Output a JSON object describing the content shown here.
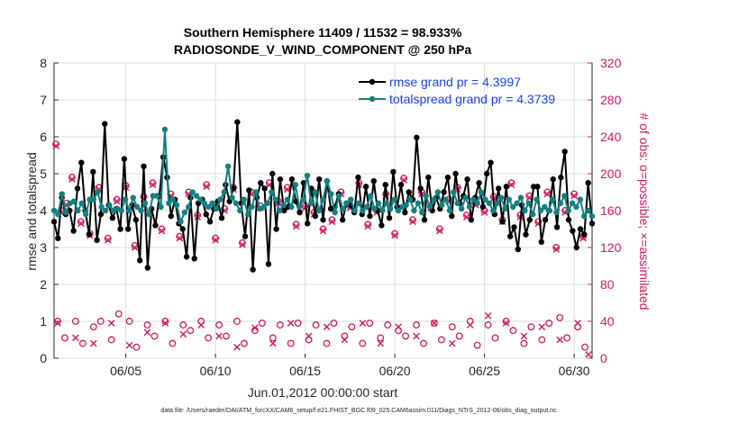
{
  "chart_data": {
    "type": "line",
    "title": "Southern Hemisphere 11409 / 11532 = 98.933%",
    "subtitle": "RADIOSONDE_V_WIND_COMPONENT @ 250 hPa",
    "ylabel": "rmse and totalspread",
    "y2label": "# of obs: o=possible; ×=assimilated",
    "xlabel": "Jun.01,2012 00:00:00 start",
    "footnote": "data file: /Users/raeder/DAI/ATM_forcXX/CAM6_setup/f.e21.FHIST_BGC.f09_025.CAM6assim.011/Diags_NTrS_2012-06/obs_diag_output.nc",
    "xlim": [
      1,
      31
    ],
    "ylim": [
      0,
      8
    ],
    "y2lim": [
      0,
      320
    ],
    "xticks": [
      5,
      10,
      15,
      20,
      25,
      30
    ],
    "xtick_labels": [
      "06/05",
      "06/10",
      "06/15",
      "06/20",
      "06/25",
      "06/30"
    ],
    "yticks": [
      0,
      1,
      2,
      3,
      4,
      5,
      6,
      7,
      8
    ],
    "y2ticks": [
      0,
      40,
      80,
      120,
      160,
      200,
      240,
      280,
      320
    ],
    "legend_position": "top-right",
    "colors": {
      "rmse": "#000000",
      "spread": "#128080",
      "obs": "#d01860",
      "legend_text": "#1a3ff0"
    },
    "series": [
      {
        "name": "rmse grand pr = 4.3997",
        "values": [
          3.7,
          3.25,
          4.35,
          3.9,
          4.0,
          3.45,
          4.6,
          5.3,
          4.0,
          3.35,
          5.05,
          3.2,
          3.9,
          6.35,
          4.15,
          3.8,
          4.05,
          3.5,
          5.4,
          3.5,
          4.15,
          3.75,
          2.65,
          5.2,
          2.45,
          4.05,
          3.6,
          4.4,
          5.45,
          4.9,
          3.85,
          4.3,
          3.65,
          3.5,
          2.75,
          4.35,
          2.7,
          4.2,
          4.3,
          3.9,
          3.7,
          4.05,
          4.25,
          3.8,
          4.7,
          4.25,
          4.6,
          6.4,
          4.2,
          3.3,
          4.55,
          2.4,
          4.35,
          4.75,
          4.6,
          2.55,
          5.0,
          3.5,
          4.85,
          4.0,
          4.1,
          4.85,
          4.25,
          3.95,
          4.75,
          3.65,
          4.6,
          3.85,
          4.85,
          3.75,
          4.8,
          4.05,
          4.1,
          4.45,
          3.75,
          4.2,
          4.15,
          3.95,
          4.9,
          3.9,
          4.65,
          3.85,
          4.8,
          4.0,
          3.6,
          4.7,
          3.8,
          5.05,
          4.1,
          4.7,
          3.95,
          4.5,
          4.3,
          5.98,
          4.6,
          3.75,
          4.9,
          4.0,
          4.35,
          4.05,
          4.5,
          4.9,
          3.85,
          5.0,
          4.2,
          4.4,
          4.85,
          3.75,
          4.35,
          4.75,
          4.1,
          5.0,
          5.3,
          3.9,
          4.6,
          3.7,
          4.65,
          3.3,
          3.55,
          2.95,
          4.15,
          3.35,
          3.75,
          4.65,
          4.65,
          3.15,
          3.75,
          4.0,
          4.85,
          3.55,
          4.9,
          5.6,
          3.75,
          3.45,
          3.0,
          3.5,
          3.35,
          4.75,
          3.65
        ]
      },
      {
        "name": "totalspread grand pr = 4.3739",
        "values": [
          4.0,
          3.9,
          4.45,
          3.95,
          4.2,
          4.25,
          4.0,
          4.2,
          3.9,
          4.3,
          4.3,
          4.5,
          4.1,
          4.0,
          4.15,
          4.0,
          4.05,
          4.0,
          4.3,
          4.0,
          4.35,
          4.1,
          4.0,
          4.2,
          3.9,
          4.4,
          4.4,
          4.1,
          6.2,
          4.2,
          4.3,
          4.15,
          3.7,
          3.95,
          4.1,
          4.5,
          4.4,
          4.3,
          4.2,
          4.1,
          4.2,
          4.05,
          4.3,
          4.5,
          5.2,
          4.35,
          4.2,
          4.0,
          4.3,
          3.9,
          4.1,
          4.5,
          4.05,
          4.1,
          4.2,
          4.5,
          4.3,
          4.0,
          4.15,
          4.3,
          4.1,
          4.7,
          4.1,
          4.3,
          4.95,
          4.2,
          4.5,
          4.0,
          4.3,
          4.8,
          4.45,
          3.95,
          4.4,
          4.05,
          4.2,
          4.3,
          4.0,
          4.2,
          4.0,
          4.1,
          4.4,
          4.05,
          4.2,
          4.0,
          4.2,
          4.05,
          4.3,
          4.0,
          4.1,
          4.15,
          4.3,
          4.0,
          4.2,
          3.95,
          4.4,
          4.1,
          4.3,
          4.5,
          4.15,
          4.3,
          4.0,
          4.5,
          4.2,
          4.05,
          4.35,
          4.1,
          4.3,
          4.2,
          4.5,
          4.3,
          4.2,
          4.0,
          4.2,
          4.35,
          4.05,
          4.3,
          4.1,
          4.2,
          4.35,
          4.0,
          4.2,
          3.9,
          4.3,
          4.0,
          4.1,
          4.0,
          4.3,
          3.95,
          4.2,
          4.4,
          4.0,
          4.2,
          4.1,
          4.3,
          3.85,
          4.0,
          3.85
        ]
      },
      {
        "name": "obs possible",
        "axis": "right",
        "x": [
          1.1,
          1.4,
          1.7,
          2.0,
          2.5,
          3.0,
          3.5,
          4.0,
          4.5,
          5.0,
          5.5,
          6.0,
          6.5,
          7.0,
          7.5,
          8.0,
          8.5,
          9.0,
          9.5,
          10.0,
          10.5,
          11.0,
          11.5,
          12.0,
          12.5,
          13.0,
          13.5,
          14.0,
          14.5,
          15.0,
          15.5,
          16.0,
          16.5,
          17.0,
          17.5,
          18.0,
          18.5,
          19.0,
          19.5,
          20.0,
          20.5,
          21.0,
          21.5,
          22.0,
          22.5,
          23.0,
          23.5,
          24.0,
          24.5,
          25.0,
          25.5,
          26.0,
          26.5,
          27.0,
          27.5,
          28.0,
          28.5,
          29.0,
          29.5,
          30.0,
          30.5
        ],
        "values": [
          232,
          160,
          168,
          196,
          148,
          135,
          185,
          130,
          172,
          187,
          122,
          175,
          190,
          140,
          178,
          132,
          180,
          155,
          188,
          130,
          162,
          185,
          125,
          180,
          165,
          190,
          170,
          185,
          145,
          165,
          158,
          140,
          150,
          180,
          165,
          190,
          145,
          160,
          178,
          135,
          195,
          150,
          180,
          165,
          140,
          172,
          185,
          155,
          168,
          160,
          175,
          150,
          190,
          155,
          176,
          148,
          180,
          120,
          160,
          178,
          132
        ]
      },
      {
        "name": "obs assimilated",
        "axis": "right",
        "x": [
          1.1,
          1.4,
          1.7,
          2.0,
          2.5,
          3.0,
          3.5,
          4.0,
          4.5,
          5.0,
          5.5,
          6.0,
          6.5,
          7.0,
          7.5,
          8.0,
          8.5,
          9.0,
          9.5,
          10.0,
          10.5,
          11.0,
          11.5,
          12.0,
          12.5,
          13.0,
          13.5,
          14.0,
          14.5,
          15.0,
          15.5,
          16.0,
          16.5,
          17.0,
          17.5,
          18.0,
          18.5,
          19.0,
          19.5,
          20.0,
          20.5,
          21.0,
          21.5,
          22.0,
          22.5,
          23.0,
          23.5,
          24.0,
          24.5,
          25.0,
          25.5,
          26.0,
          26.5,
          27.0,
          27.5,
          28.0,
          28.5,
          29.0,
          29.5,
          30.0,
          30.5,
          1.2,
          2.2,
          3.2,
          4.2,
          5.2,
          6.2,
          7.2,
          8.2,
          9.2,
          10.2,
          11.2,
          12.2,
          13.2,
          14.2,
          15.2,
          16.2,
          17.2,
          18.2,
          19.2,
          20.2,
          21.2,
          22.2,
          23.2,
          24.2,
          25.2,
          26.2,
          27.2,
          28.2,
          29.2,
          30.2,
          30.8
        ],
        "values": [
          230,
          158,
          166,
          194,
          146,
          133,
          183,
          128,
          170,
          185,
          120,
          173,
          188,
          138,
          176,
          130,
          178,
          153,
          186,
          128,
          160,
          183,
          123,
          178,
          163,
          188,
          168,
          183,
          143,
          163,
          156,
          138,
          148,
          178,
          163,
          188,
          143,
          158,
          176,
          133,
          193,
          148,
          178,
          163,
          138,
          170,
          183,
          153,
          166,
          158,
          173,
          148,
          188,
          153,
          174,
          146,
          178,
          118,
          158,
          176,
          130,
          38,
          22,
          16,
          38,
          14,
          28,
          38,
          26,
          36,
          24,
          12,
          33,
          16,
          38,
          24,
          34,
          20,
          38,
          16,
          34,
          24,
          38,
          16,
          36,
          46,
          38,
          24,
          34,
          20,
          38,
          4
        ]
      },
      {
        "name": "obs possible low",
        "axis": "right",
        "x": [
          1.2,
          1.6,
          2.2,
          2.6,
          3.2,
          3.6,
          4.2,
          4.6,
          5.2,
          5.6,
          6.2,
          6.6,
          7.2,
          7.6,
          8.2,
          8.6,
          9.2,
          9.6,
          10.2,
          10.6,
          11.2,
          11.6,
          12.2,
          12.6,
          13.2,
          13.6,
          14.2,
          14.6,
          15.2,
          15.6,
          16.2,
          16.6,
          17.2,
          17.6,
          18.2,
          18.6,
          19.2,
          19.6,
          20.2,
          20.6,
          21.2,
          21.6,
          22.2,
          22.6,
          23.2,
          23.6,
          24.2,
          24.6,
          25.2,
          25.6,
          26.2,
          26.6,
          27.2,
          27.6,
          28.2,
          28.6,
          29.2,
          29.6,
          30.2,
          30.6
        ],
        "values": [
          40,
          22,
          40,
          16,
          34,
          40,
          20,
          48,
          40,
          12,
          36,
          24,
          40,
          16,
          36,
          30,
          40,
          22,
          36,
          24,
          40,
          16,
          30,
          38,
          22,
          36,
          16,
          38,
          20,
          36,
          16,
          38,
          24,
          34,
          16,
          38,
          22,
          36,
          30,
          24,
          36,
          16,
          38,
          20,
          34,
          24,
          40,
          14,
          36,
          22,
          40,
          30,
          16,
          34,
          20,
          38,
          44,
          22,
          34,
          12
        ]
      }
    ]
  }
}
